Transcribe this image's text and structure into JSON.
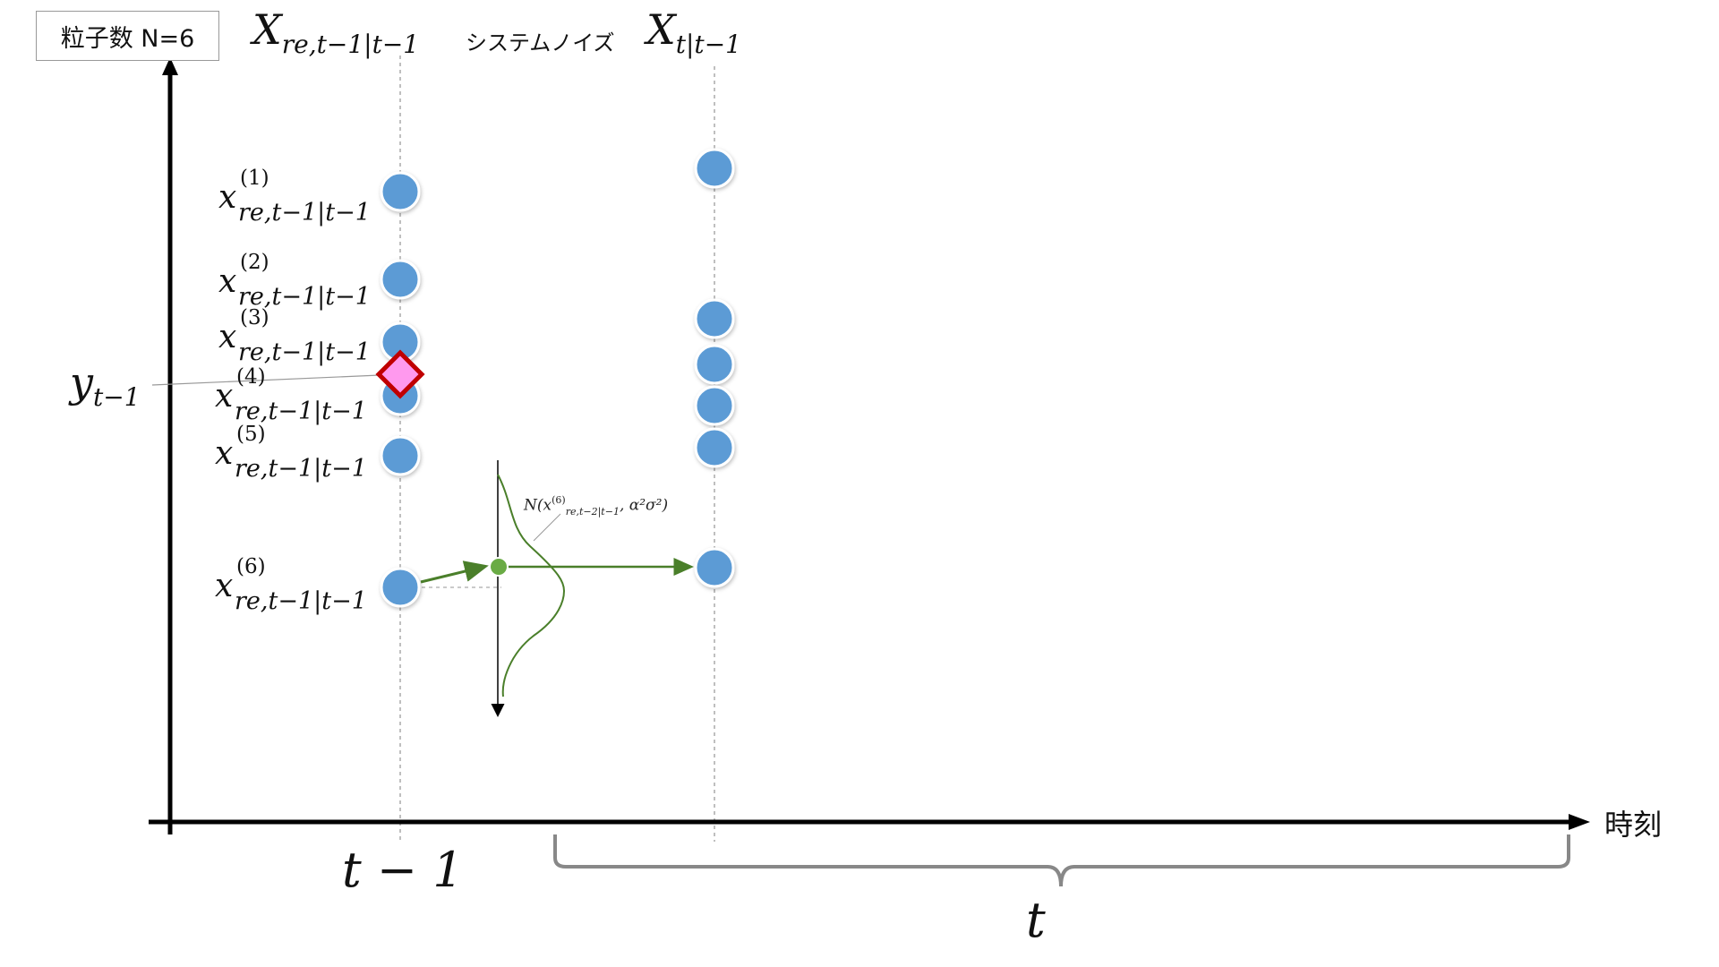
{
  "header_box": {
    "label": "粒子数 N=6"
  },
  "column_labels": {
    "resampled": {
      "base": "X",
      "sub": "re,t−1|t−1"
    },
    "system_noise": "システムノイズ",
    "predicted": {
      "base": "X",
      "sub": "t|t−1"
    }
  },
  "observation": {
    "base": "y",
    "sub": "t−1"
  },
  "particles": [
    {
      "index": "(1)",
      "base": "x",
      "sub": "re,t−1|t−1"
    },
    {
      "index": "(2)",
      "base": "x",
      "sub": "re,t−1|t−1"
    },
    {
      "index": "(3)",
      "base": "x",
      "sub": "re,t−1|t−1"
    },
    {
      "index": "(4)",
      "base": "x",
      "sub": "re,t−1|t−1"
    },
    {
      "index": "(5)",
      "base": "x",
      "sub": "re,t−1|t−1"
    },
    {
      "index": "(6)",
      "base": "x",
      "sub": "re,t−1|t−1"
    }
  ],
  "noise_formula": {
    "prefix": "N(x",
    "sub": "re,t−2|t−1",
    "sup": "(6)",
    "suffix": ",  α²σ²)"
  },
  "axis": {
    "x_label": "時刻",
    "tick_prev": "t − 1",
    "tick_curr": "t"
  },
  "colors": {
    "particle": "#5b9bd5",
    "particle_stroke": "#ffffff",
    "observation_fill": "#ff99ee",
    "observation_stroke": "#c00000",
    "noise": "#4a7f2a",
    "noise_dot": "#6aab45",
    "axis": "#000000",
    "brace": "#888888"
  }
}
